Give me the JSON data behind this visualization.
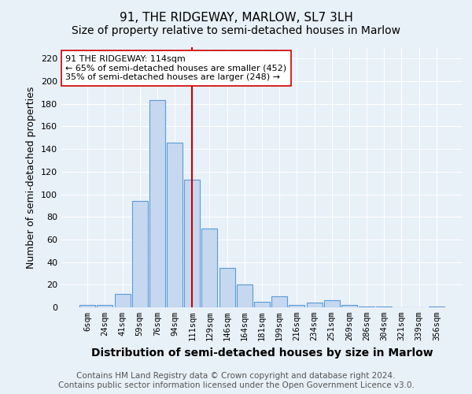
{
  "title": "91, THE RIDGEWAY, MARLOW, SL7 3LH",
  "subtitle": "Size of property relative to semi-detached houses in Marlow",
  "xlabel": "Distribution of semi-detached houses by size in Marlow",
  "ylabel": "Number of semi-detached properties",
  "bar_labels": [
    "6sqm",
    "24sqm",
    "41sqm",
    "59sqm",
    "76sqm",
    "94sqm",
    "111sqm",
    "129sqm",
    "146sqm",
    "164sqm",
    "181sqm",
    "199sqm",
    "216sqm",
    "234sqm",
    "251sqm",
    "269sqm",
    "286sqm",
    "304sqm",
    "321sqm",
    "339sqm",
    "356sqm"
  ],
  "bar_values": [
    2,
    2,
    12,
    94,
    183,
    146,
    113,
    70,
    35,
    20,
    5,
    10,
    2,
    4,
    6,
    2,
    1,
    1,
    0,
    0,
    1
  ],
  "bar_color": "#c5d8f0",
  "bar_edge_color": "#5b9bd5",
  "vline_x_index": 6,
  "vline_color": "#cc0000",
  "annotation_text": "91 THE RIDGEWAY: 114sqm\n← 65% of semi-detached houses are smaller (452)\n35% of semi-detached houses are larger (248) →",
  "annotation_box_color": "#ffffff",
  "annotation_box_edge": "#cc0000",
  "ylim": [
    0,
    230
  ],
  "yticks": [
    0,
    20,
    40,
    60,
    80,
    100,
    120,
    140,
    160,
    180,
    200,
    220
  ],
  "footer1": "Contains HM Land Registry data © Crown copyright and database right 2024.",
  "footer2": "Contains public sector information licensed under the Open Government Licence v3.0.",
  "bg_color": "#e8f0f8",
  "plot_bg_color": "#e8f0f8",
  "title_fontsize": 11,
  "subtitle_fontsize": 10,
  "axis_label_fontsize": 9,
  "tick_fontsize": 8,
  "footer_fontsize": 7.5
}
